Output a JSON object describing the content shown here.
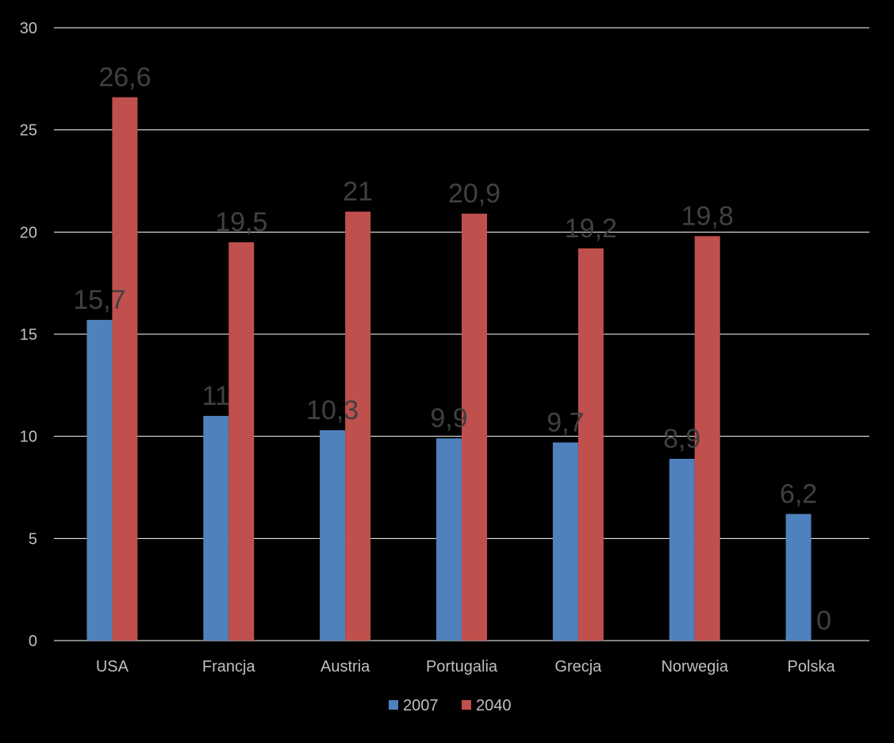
{
  "chart_data": {
    "type": "bar",
    "categories": [
      "USA",
      "Francja",
      "Austria",
      "Portugalia",
      "Grecja",
      "Norwegia",
      "Polska"
    ],
    "series": [
      {
        "name": "2007",
        "color": "#4F81BD",
        "values": [
          15.7,
          11,
          10.3,
          9.9,
          9.7,
          8.9,
          6.2
        ],
        "labels": [
          "15,7",
          "11",
          "10,3",
          "9,9",
          "9,7",
          "8,9",
          "6,2"
        ]
      },
      {
        "name": "2040",
        "color": "#C0504D",
        "values": [
          26.6,
          19.5,
          21,
          20.9,
          19.2,
          19.8,
          0
        ],
        "labels": [
          "26,6",
          "19,5",
          "21",
          "20,9",
          "19,2",
          "19,8",
          "0"
        ]
      }
    ],
    "ylim": [
      0,
      30
    ],
    "y_ticks": [
      "0",
      "5",
      "10",
      "15",
      "20",
      "25",
      "30"
    ],
    "title": "",
    "xlabel": "",
    "ylabel": "",
    "grid": true,
    "legend_position": "bottom",
    "colors": {
      "background": "#000000",
      "gridline": "#FFFFFF",
      "tick_text": "#BFBFBF",
      "data_label": "#404040"
    }
  }
}
